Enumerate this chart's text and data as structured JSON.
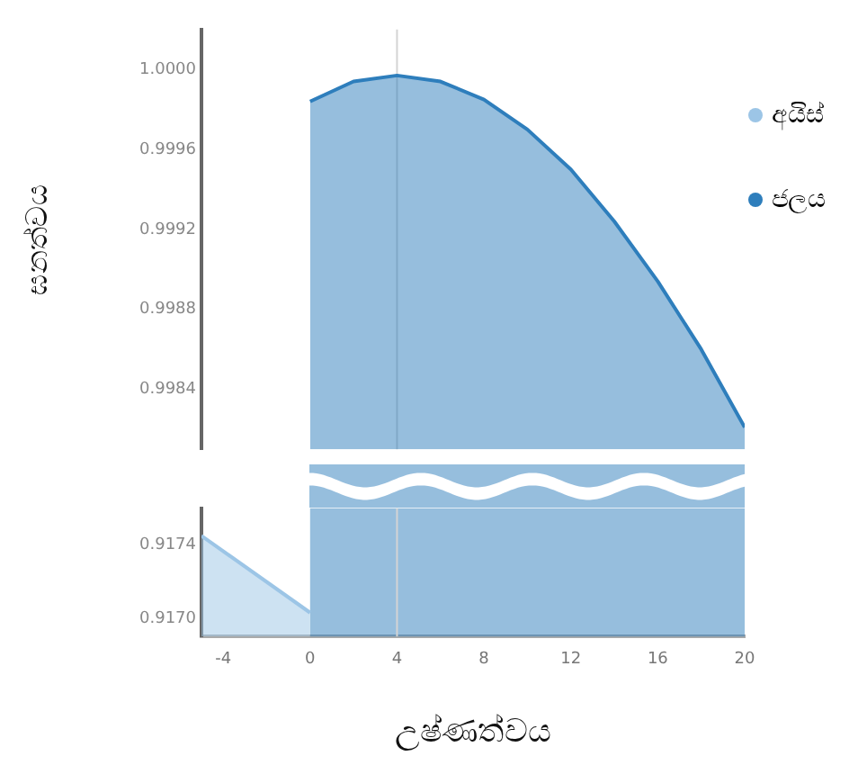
{
  "chart_data": [
    {
      "type": "area",
      "ylabel": "ඝනත්වය",
      "xlim": [
        -5,
        20
      ],
      "xticks": [
        -4,
        0,
        4,
        8,
        12,
        16,
        20
      ],
      "tick_labels": "y",
      "ylim": [
        0.9981,
        1.0002
      ],
      "yticks": [
        0.9984,
        0.9988,
        0.9992,
        0.9996,
        {
          "value": 1,
          "label": "1.0000"
        }
      ],
      "series": [
        {
          "name": "ජලය",
          "color": "#2e7ebc",
          "x": [
            0,
            2,
            4,
            6,
            8,
            10,
            12,
            14,
            16,
            18,
            20
          ],
          "values": [
            0.99984,
            0.99994,
            0.99997,
            0.99994,
            0.99985,
            0.9997,
            0.9995,
            0.99924,
            0.99894,
            0.9986,
            0.99821
          ]
        }
      ],
      "ref_lines": [
        {
          "axis": "x",
          "value": 4,
          "color": "#d4d4d4"
        }
      ],
      "legend": "top right",
      "marker": "none"
    },
    {
      "type": "area",
      "xlabel": "උෂ්ණත්වය",
      "xlim": [
        -5,
        20
      ],
      "xticks": [
        -4,
        0,
        4,
        8,
        12,
        16,
        20
      ],
      "ylim": [
        0.9169,
        0.9176
      ],
      "yticks": [
        {
          "value": 0.917,
          "label": "0.9170"
        },
        0.9174
      ],
      "series": [
        {
          "name": "අයිස්",
          "color": "#9cc5e6",
          "x": [
            -5,
            0
          ],
          "values": [
            0.91745,
            0.91703
          ]
        }
      ],
      "ref_lines": [
        {
          "axis": "x",
          "value": 4,
          "color": "#d4d4d4"
        }
      ],
      "bands": [
        {
          "axis": "x",
          "from": 0,
          "to": 20,
          "color": "#2e7ebc"
        }
      ],
      "legend": "top right",
      "marker": "none"
    }
  ]
}
